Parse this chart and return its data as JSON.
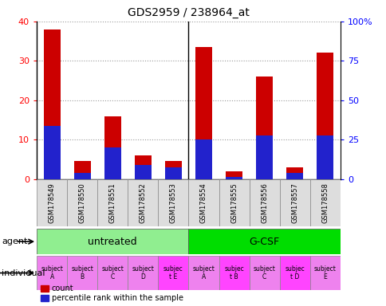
{
  "title": "GDS2959 / 238964_at",
  "samples": [
    "GSM178549",
    "GSM178550",
    "GSM178551",
    "GSM178552",
    "GSM178553",
    "GSM178554",
    "GSM178555",
    "GSM178556",
    "GSM178557",
    "GSM178558"
  ],
  "counts": [
    38,
    4.5,
    16,
    6,
    4.5,
    33.5,
    2,
    26,
    3,
    32
  ],
  "percentile_ranks": [
    13.5,
    1.5,
    8,
    3.5,
    3,
    10,
    0.5,
    11,
    1.5,
    11
  ],
  "agents": [
    {
      "label": "untreated",
      "start": 0,
      "end": 5,
      "color": "#90EE90"
    },
    {
      "label": "G-CSF",
      "start": 5,
      "end": 10,
      "color": "#00DD00"
    }
  ],
  "individuals": [
    {
      "label": "subject\nA",
      "idx": 0,
      "color": "#EE82EE"
    },
    {
      "label": "subject\nB",
      "idx": 1,
      "color": "#EE82EE"
    },
    {
      "label": "subject\nC",
      "idx": 2,
      "color": "#EE82EE"
    },
    {
      "label": "subject\nD",
      "idx": 3,
      "color": "#EE82EE"
    },
    {
      "label": "subjec\nt E",
      "idx": 4,
      "color": "#FF44FF"
    },
    {
      "label": "subject\nA",
      "idx": 5,
      "color": "#EE82EE"
    },
    {
      "label": "subjec\nt B",
      "idx": 6,
      "color": "#FF44FF"
    },
    {
      "label": "subject\nC",
      "idx": 7,
      "color": "#EE82EE"
    },
    {
      "label": "subjec\nt D",
      "idx": 8,
      "color": "#FF44FF"
    },
    {
      "label": "subject\nE",
      "idx": 9,
      "color": "#EE82EE"
    }
  ],
  "bar_color": "#CC0000",
  "percentile_color": "#2222CC",
  "ylim_left": [
    0,
    40
  ],
  "ylim_right": [
    0,
    100
  ],
  "yticks_left": [
    0,
    10,
    20,
    30,
    40
  ],
  "yticks_right": [
    0,
    25,
    50,
    75,
    100
  ],
  "ytick_labels_right": [
    "0",
    "25",
    "50",
    "75",
    "100%"
  ],
  "background_color": "#ffffff",
  "grid_color": "#555555",
  "xlabel_bg": "#DDDDDD"
}
